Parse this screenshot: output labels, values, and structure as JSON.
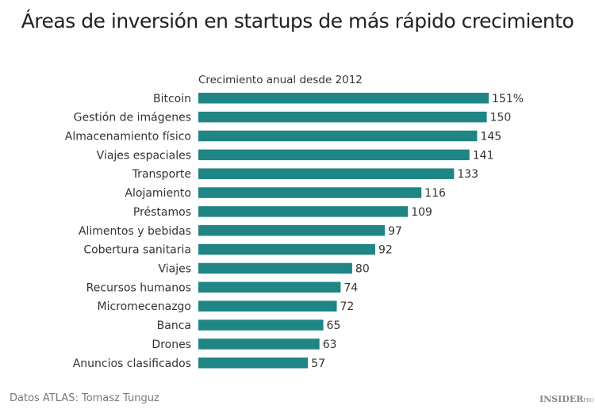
{
  "chart_data": {
    "type": "bar",
    "orientation": "horizontal",
    "title": "Áreas de inversión en startups de más rápido crecimiento",
    "subtitle": "Crecimiento anual desde 2012",
    "categories": [
      "Bitcoin",
      "Gestión de imágenes",
      "Almacenamiento físico",
      "Viajes espaciales",
      "Transporte",
      "Alojamiento",
      "Préstamos",
      "Alimentos y bebidas",
      "Cobertura sanitaria",
      "Viajes",
      "Recursos humanos",
      "Micromecenazgo",
      "Banca",
      "Drones",
      "Anuncios clasificados"
    ],
    "values": [
      151,
      150,
      145,
      141,
      133,
      116,
      109,
      97,
      92,
      80,
      74,
      72,
      65,
      63,
      57
    ],
    "value_labels": [
      "151%",
      "150",
      "145",
      "141",
      "133",
      "116",
      "109",
      "97",
      "92",
      "80",
      "74",
      "72",
      "65",
      "63",
      "57"
    ],
    "xlim": [
      0,
      151
    ],
    "grid": false,
    "bar_color": "#1f8585"
  },
  "footer": {
    "source": "Datos ATLAS: Tomasz Tunguz",
    "logo": "INSIDER",
    "logo_suffix": "PRO"
  }
}
